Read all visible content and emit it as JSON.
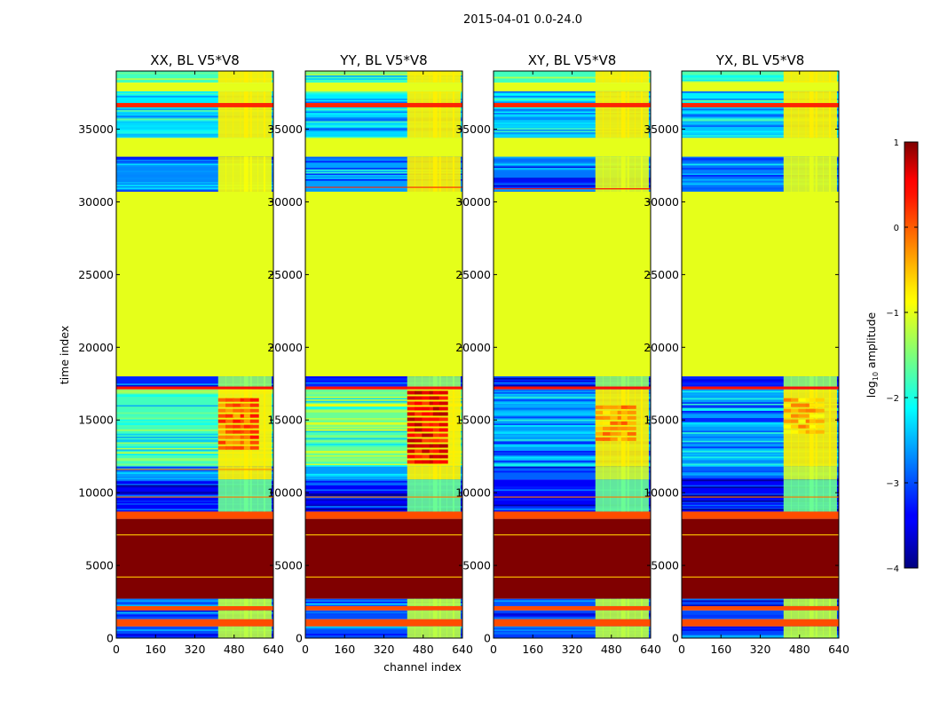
{
  "chart_data": {
    "type": "heatmap",
    "suptitle": "2015-04-01 0.0-24.0",
    "xlabel": "channel index",
    "ylabel": "time index",
    "xlim": [
      0,
      640
    ],
    "ylim": [
      0,
      39000
    ],
    "xticks": [
      0,
      160,
      320,
      480,
      640
    ],
    "yticks": [
      0,
      5000,
      10000,
      15000,
      20000,
      25000,
      30000,
      35000
    ],
    "colorbar": {
      "label_prefix": "log",
      "label_sub": "10",
      "label_suffix": " amplitude",
      "range": [
        -4,
        1
      ],
      "ticks": [
        1,
        0,
        -1,
        -2,
        -3,
        -4
      ],
      "tick_labels": [
        "1",
        "0",
        "−1",
        "−2",
        "−3",
        "−4"
      ],
      "colormap": "jet"
    },
    "band_channels": [
      415,
      445,
      475,
      505,
      520,
      545,
      575,
      600
    ],
    "panels": [
      {
        "title": "XX, BL V5*V8",
        "bands": [
          {
            "y0": 38200,
            "y1": 39000,
            "v": -1.8,
            "kind": "noisy"
          },
          {
            "y0": 37600,
            "y1": 38200,
            "v": -1.0,
            "kind": "solid"
          },
          {
            "y0": 36800,
            "y1": 37600,
            "v": -2.2,
            "kind": "noisy"
          },
          {
            "y0": 36500,
            "y1": 36800,
            "v": 0.2,
            "kind": "solid"
          },
          {
            "y0": 34400,
            "y1": 36500,
            "v": -2.3,
            "kind": "noisy"
          },
          {
            "y0": 33100,
            "y1": 34400,
            "v": -1.0,
            "kind": "solid"
          },
          {
            "y0": 30700,
            "y1": 33100,
            "v": -2.7,
            "kind": "noisy"
          },
          {
            "y0": 18000,
            "y1": 30700,
            "v": -1.0,
            "kind": "solid"
          },
          {
            "y0": 17300,
            "y1": 18000,
            "v": -3.2,
            "kind": "noisy"
          },
          {
            "y0": 17100,
            "y1": 17300,
            "v": 0.3,
            "kind": "solid"
          },
          {
            "y0": 11800,
            "y1": 17100,
            "v": -1.8,
            "kind": "noisy"
          },
          {
            "y0": 10900,
            "y1": 11800,
            "v": -2.6,
            "kind": "noisy"
          },
          {
            "y0": 8700,
            "y1": 10900,
            "v": -3.4,
            "kind": "noisy"
          },
          {
            "y0": 8200,
            "y1": 8700,
            "v": 0.0,
            "kind": "solid"
          },
          {
            "y0": 2700,
            "y1": 8200,
            "v": 1.0,
            "kind": "solid"
          },
          {
            "y0": 2200,
            "y1": 2700,
            "v": -3.0,
            "kind": "noisy"
          },
          {
            "y0": 1900,
            "y1": 2200,
            "v": 0.0,
            "kind": "solid"
          },
          {
            "y0": 1300,
            "y1": 1900,
            "v": -3.0,
            "kind": "noisy"
          },
          {
            "y0": 800,
            "y1": 1300,
            "v": 0.0,
            "kind": "solid"
          },
          {
            "y0": 0,
            "y1": 800,
            "v": -3.0,
            "kind": "noisy"
          }
        ],
        "lines": [
          {
            "y": 7100,
            "v": -0.6
          },
          {
            "y": 4200,
            "v": -0.6
          },
          {
            "y": 9700,
            "v": -0.2
          },
          {
            "y": 11600,
            "v": -0.3
          }
        ],
        "hot_region": {
          "y0": 13000,
          "y1": 16500,
          "v": -0.1
        }
      },
      {
        "title": "YY, BL V5*V8",
        "bands": [
          {
            "y0": 38200,
            "y1": 39000,
            "v": -1.8,
            "kind": "noisy"
          },
          {
            "y0": 37600,
            "y1": 38200,
            "v": -1.0,
            "kind": "solid"
          },
          {
            "y0": 36800,
            "y1": 37600,
            "v": -2.2,
            "kind": "noisy"
          },
          {
            "y0": 36500,
            "y1": 36800,
            "v": 0.2,
            "kind": "solid"
          },
          {
            "y0": 34400,
            "y1": 36500,
            "v": -2.3,
            "kind": "noisy"
          },
          {
            "y0": 33100,
            "y1": 34400,
            "v": -1.0,
            "kind": "solid"
          },
          {
            "y0": 30700,
            "y1": 33100,
            "v": -2.6,
            "kind": "noisy"
          },
          {
            "y0": 18000,
            "y1": 30700,
            "v": -1.0,
            "kind": "solid"
          },
          {
            "y0": 17300,
            "y1": 18000,
            "v": -3.2,
            "kind": "noisy"
          },
          {
            "y0": 17100,
            "y1": 17300,
            "v": 0.3,
            "kind": "solid"
          },
          {
            "y0": 11800,
            "y1": 17100,
            "v": -1.6,
            "kind": "noisy"
          },
          {
            "y0": 10900,
            "y1": 11800,
            "v": -2.6,
            "kind": "noisy"
          },
          {
            "y0": 8700,
            "y1": 10900,
            "v": -3.4,
            "kind": "noisy"
          },
          {
            "y0": 8200,
            "y1": 8700,
            "v": 0.0,
            "kind": "solid"
          },
          {
            "y0": 2700,
            "y1": 8200,
            "v": 1.0,
            "kind": "solid"
          },
          {
            "y0": 2200,
            "y1": 2700,
            "v": -3.0,
            "kind": "noisy"
          },
          {
            "y0": 1900,
            "y1": 2200,
            "v": 0.0,
            "kind": "solid"
          },
          {
            "y0": 1300,
            "y1": 1900,
            "v": -3.0,
            "kind": "noisy"
          },
          {
            "y0": 800,
            "y1": 1300,
            "v": 0.0,
            "kind": "solid"
          },
          {
            "y0": 0,
            "y1": 800,
            "v": -3.0,
            "kind": "noisy"
          }
        ],
        "lines": [
          {
            "y": 7100,
            "v": -0.6
          },
          {
            "y": 4200,
            "v": -0.6
          },
          {
            "y": 9700,
            "v": -0.2
          },
          {
            "y": 31000,
            "v": 0.2
          }
        ],
        "hot_region": {
          "y0": 12000,
          "y1": 17000,
          "v": 0.4
        }
      },
      {
        "title": "XY, BL V5*V8",
        "bands": [
          {
            "y0": 38200,
            "y1": 39000,
            "v": -1.8,
            "kind": "noisy"
          },
          {
            "y0": 37600,
            "y1": 38200,
            "v": -1.0,
            "kind": "solid"
          },
          {
            "y0": 36800,
            "y1": 37600,
            "v": -2.2,
            "kind": "noisy"
          },
          {
            "y0": 36500,
            "y1": 36800,
            "v": 0.2,
            "kind": "solid"
          },
          {
            "y0": 34400,
            "y1": 36500,
            "v": -2.4,
            "kind": "noisy"
          },
          {
            "y0": 33100,
            "y1": 34400,
            "v": -1.0,
            "kind": "solid"
          },
          {
            "y0": 30700,
            "y1": 33100,
            "v": -2.8,
            "kind": "noisy"
          },
          {
            "y0": 18000,
            "y1": 30700,
            "v": -1.0,
            "kind": "solid"
          },
          {
            "y0": 17300,
            "y1": 18000,
            "v": -3.2,
            "kind": "noisy"
          },
          {
            "y0": 17100,
            "y1": 17300,
            "v": 0.3,
            "kind": "solid"
          },
          {
            "y0": 11800,
            "y1": 17100,
            "v": -2.6,
            "kind": "noisy"
          },
          {
            "y0": 10900,
            "y1": 11800,
            "v": -2.9,
            "kind": "noisy"
          },
          {
            "y0": 8700,
            "y1": 10900,
            "v": -3.4,
            "kind": "noisy"
          },
          {
            "y0": 8200,
            "y1": 8700,
            "v": 0.0,
            "kind": "solid"
          },
          {
            "y0": 2700,
            "y1": 8200,
            "v": 1.0,
            "kind": "solid"
          },
          {
            "y0": 2200,
            "y1": 2700,
            "v": -3.0,
            "kind": "noisy"
          },
          {
            "y0": 1900,
            "y1": 2200,
            "v": 0.0,
            "kind": "solid"
          },
          {
            "y0": 1300,
            "y1": 1900,
            "v": -3.0,
            "kind": "noisy"
          },
          {
            "y0": 800,
            "y1": 1300,
            "v": 0.0,
            "kind": "solid"
          },
          {
            "y0": 0,
            "y1": 800,
            "v": -3.0,
            "kind": "noisy"
          }
        ],
        "lines": [
          {
            "y": 7100,
            "v": -0.6
          },
          {
            "y": 4200,
            "v": -0.6
          },
          {
            "y": 9700,
            "v": -0.2
          },
          {
            "y": 30900,
            "v": 0.3
          }
        ],
        "hot_region": {
          "y0": 13500,
          "y1": 16000,
          "v": -0.4
        }
      },
      {
        "title": "YX, BL V5*V8",
        "bands": [
          {
            "y0": 38200,
            "y1": 39000,
            "v": -1.8,
            "kind": "noisy"
          },
          {
            "y0": 37600,
            "y1": 38200,
            "v": -1.0,
            "kind": "solid"
          },
          {
            "y0": 36800,
            "y1": 37600,
            "v": -2.2,
            "kind": "noisy"
          },
          {
            "y0": 36500,
            "y1": 36800,
            "v": 0.2,
            "kind": "solid"
          },
          {
            "y0": 34400,
            "y1": 36500,
            "v": -2.4,
            "kind": "noisy"
          },
          {
            "y0": 33100,
            "y1": 34400,
            "v": -1.0,
            "kind": "solid"
          },
          {
            "y0": 30700,
            "y1": 33100,
            "v": -2.8,
            "kind": "noisy"
          },
          {
            "y0": 18000,
            "y1": 30700,
            "v": -1.0,
            "kind": "solid"
          },
          {
            "y0": 17300,
            "y1": 18000,
            "v": -3.2,
            "kind": "noisy"
          },
          {
            "y0": 17100,
            "y1": 17300,
            "v": 0.3,
            "kind": "solid"
          },
          {
            "y0": 11800,
            "y1": 17100,
            "v": -2.6,
            "kind": "noisy"
          },
          {
            "y0": 10900,
            "y1": 11800,
            "v": -2.9,
            "kind": "noisy"
          },
          {
            "y0": 8700,
            "y1": 10900,
            "v": -3.4,
            "kind": "noisy"
          },
          {
            "y0": 8200,
            "y1": 8700,
            "v": 0.0,
            "kind": "solid"
          },
          {
            "y0": 2700,
            "y1": 8200,
            "v": 1.0,
            "kind": "solid"
          },
          {
            "y0": 2200,
            "y1": 2700,
            "v": -3.0,
            "kind": "noisy"
          },
          {
            "y0": 1900,
            "y1": 2200,
            "v": 0.0,
            "kind": "solid"
          },
          {
            "y0": 1300,
            "y1": 1900,
            "v": -3.0,
            "kind": "noisy"
          },
          {
            "y0": 800,
            "y1": 1300,
            "v": 0.0,
            "kind": "solid"
          },
          {
            "y0": 0,
            "y1": 800,
            "v": -3.0,
            "kind": "noisy"
          }
        ],
        "lines": [
          {
            "y": 7100,
            "v": -0.6
          },
          {
            "y": 4200,
            "v": -0.6
          },
          {
            "y": 9700,
            "v": -0.2
          }
        ],
        "hot_region": {
          "y0": 14000,
          "y1": 16500,
          "v": -0.6
        }
      }
    ]
  }
}
